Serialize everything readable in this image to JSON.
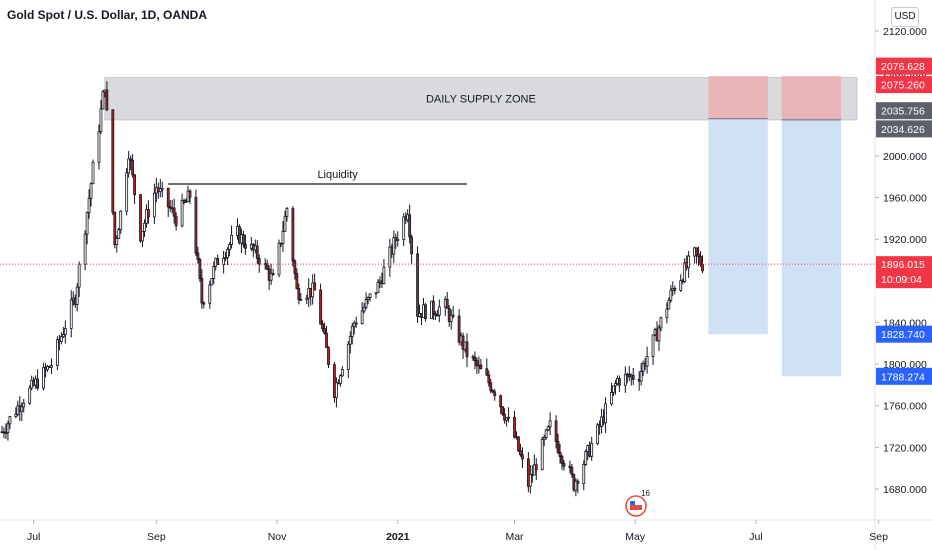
{
  "header": {
    "symbol_title": "Gold Spot / U.S. Dollar, 1D, OANDA",
    "currency": "USD"
  },
  "colors": {
    "up_candle": "#ffffff",
    "down_candle": "#a32a2a",
    "wick": "#131722",
    "supply_zone": "#d9dade",
    "stop_zone": "#e8b6b8",
    "target_zone": "#cfe1f5",
    "current_price": "#f23645",
    "target_label": "#2962ff",
    "grey_label": "#5d606b"
  },
  "events_badge": {
    "count": "16"
  },
  "chart_data": {
    "type": "candlestick",
    "title": "Gold Spot / U.S. Dollar, 1D, OANDA",
    "xlabel": "",
    "ylabel": "",
    "ylim": [
      1650,
      2150
    ],
    "y_ticks": [
      "2120.000",
      "2080.000",
      "2040.000",
      "2000.000",
      "1960.000",
      "1920.000",
      "1880.000",
      "1840.000",
      "1800.000",
      "1760.000",
      "1720.000",
      "1680.000"
    ],
    "x_ticks": [
      "Jul",
      "Sep",
      "Nov",
      "2021",
      "Mar",
      "May",
      "Jul",
      "Sep"
    ],
    "price_path": [
      {
        "date": "2020-06-15",
        "price": 1735
      },
      {
        "date": "2020-06-25",
        "price": 1765
      },
      {
        "date": "2020-07-10",
        "price": 1800
      },
      {
        "date": "2020-07-22",
        "price": 1865
      },
      {
        "date": "2020-07-29",
        "price": 1960
      },
      {
        "date": "2020-08-06",
        "price": 2070
      },
      {
        "date": "2020-08-11",
        "price": 1915
      },
      {
        "date": "2020-08-14",
        "price": 1945
      },
      {
        "date": "2020-08-18",
        "price": 2005
      },
      {
        "date": "2020-08-24",
        "price": 1925
      },
      {
        "date": "2020-09-01",
        "price": 1970
      },
      {
        "date": "2020-09-11",
        "price": 1940
      },
      {
        "date": "2020-09-18",
        "price": 1962
      },
      {
        "date": "2020-09-24",
        "price": 1860
      },
      {
        "date": "2020-10-02",
        "price": 1900
      },
      {
        "date": "2020-10-12",
        "price": 1925
      },
      {
        "date": "2020-10-23",
        "price": 1902
      },
      {
        "date": "2020-10-30",
        "price": 1880
      },
      {
        "date": "2020-11-06",
        "price": 1950
      },
      {
        "date": "2020-11-11",
        "price": 1870
      },
      {
        "date": "2020-11-20",
        "price": 1870
      },
      {
        "date": "2020-11-30",
        "price": 1775
      },
      {
        "date": "2020-12-10",
        "price": 1840
      },
      {
        "date": "2020-12-22",
        "price": 1875
      },
      {
        "date": "2021-01-06",
        "price": 1950
      },
      {
        "date": "2021-01-11",
        "price": 1850
      },
      {
        "date": "2021-01-25",
        "price": 1855
      },
      {
        "date": "2021-02-05",
        "price": 1810
      },
      {
        "date": "2021-02-19",
        "price": 1775
      },
      {
        "date": "2021-03-01",
        "price": 1730
      },
      {
        "date": "2021-03-08",
        "price": 1685
      },
      {
        "date": "2021-03-19",
        "price": 1740
      },
      {
        "date": "2021-03-31",
        "price": 1685
      },
      {
        "date": "2021-04-12",
        "price": 1735
      },
      {
        "date": "2021-04-22",
        "price": 1785
      },
      {
        "date": "2021-05-03",
        "price": 1790
      },
      {
        "date": "2021-05-12",
        "price": 1830
      },
      {
        "date": "2021-05-20",
        "price": 1872
      },
      {
        "date": "2021-05-31",
        "price": 1905
      },
      {
        "date": "2021-06-04",
        "price": 1896
      }
    ],
    "zones": [
      {
        "label": "DAILY SUPPLY ZONE",
        "start": "2020-08-06",
        "end": "2021-08-21",
        "top": 2075.26,
        "bottom": 2034.626
      }
    ],
    "annotations": [
      {
        "label": "Liquidity",
        "start": "2020-09-07",
        "end": "2021-02-05",
        "price": 1973
      }
    ],
    "positions": [
      {
        "start": "2021-06-07",
        "end": "2021-07-07",
        "stop": 2076.628,
        "entry": 2035.756,
        "target": 1828.74
      },
      {
        "start": "2021-07-14",
        "end": "2021-08-13",
        "stop": 2076.628,
        "entry": 2034.626,
        "target": 1788.274
      }
    ],
    "current_price": 1896.015,
    "countdown": "10:09:04",
    "price_labels": [
      {
        "value": "2076.628",
        "kind": "stop"
      },
      {
        "value": "2075.260",
        "kind": "stop"
      },
      {
        "value": "2035.756",
        "kind": "grey"
      },
      {
        "value": "2034.626",
        "kind": "grey"
      },
      {
        "value": "1896.015",
        "kind": "current"
      },
      {
        "value": "1828.740",
        "kind": "target"
      },
      {
        "value": "1788.274",
        "kind": "target"
      }
    ],
    "grid": false
  }
}
